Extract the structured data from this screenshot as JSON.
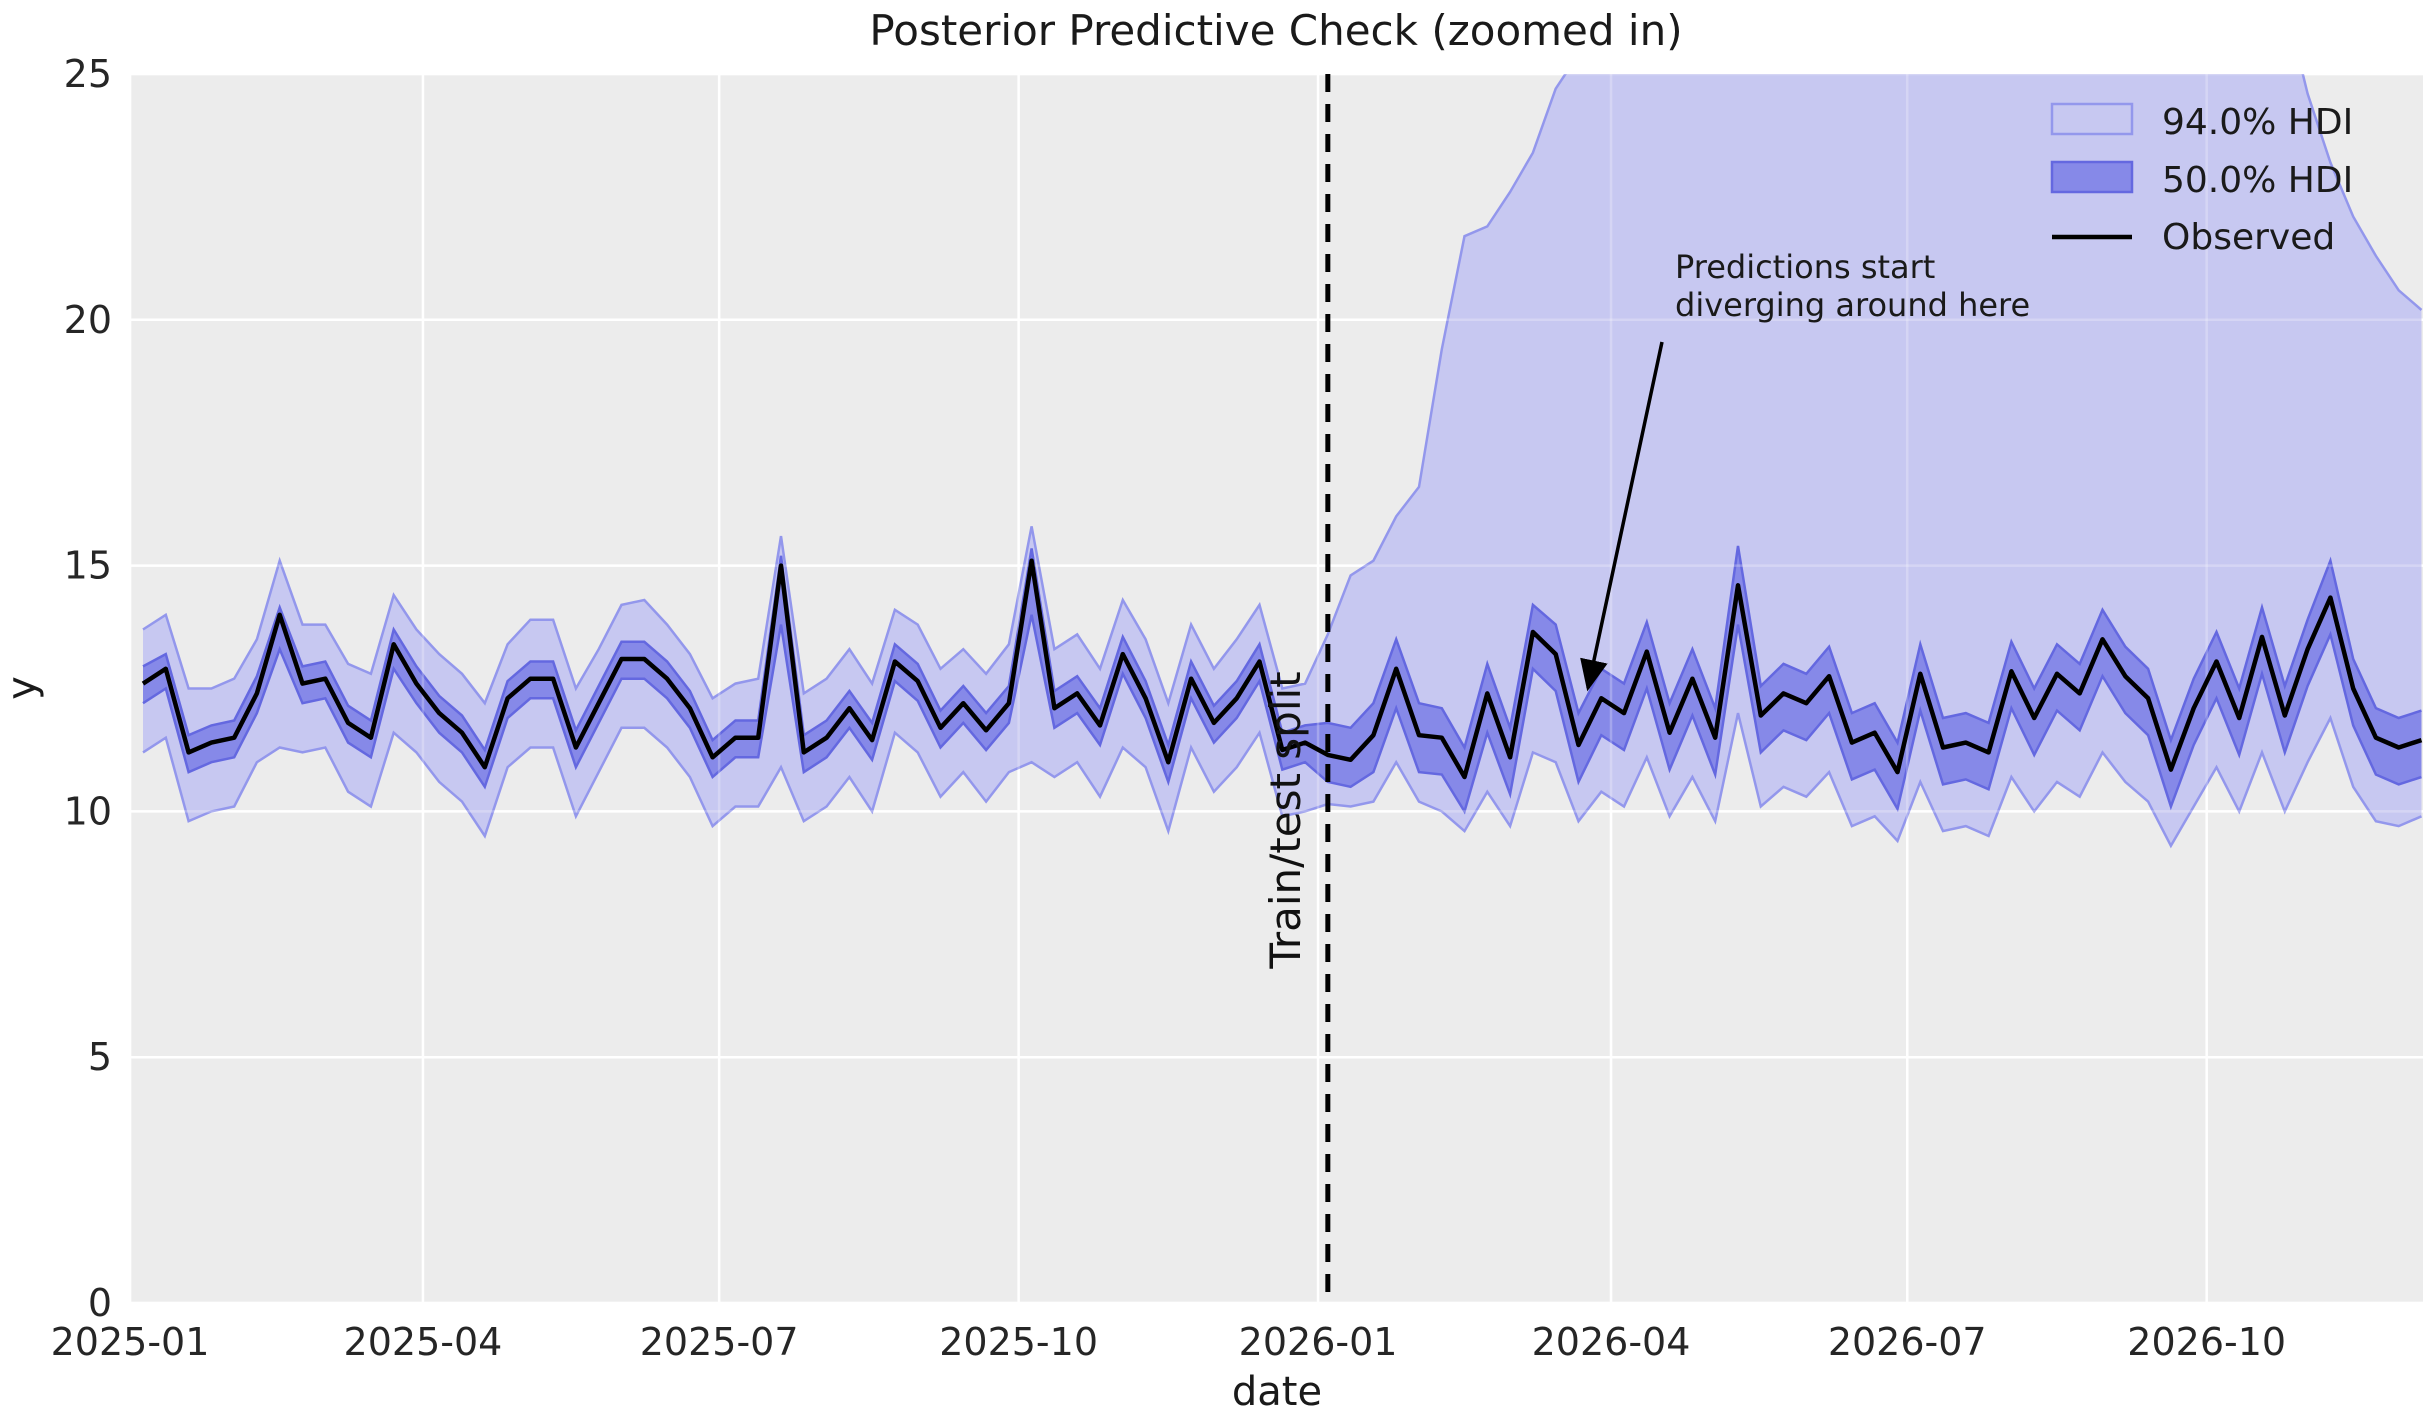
{
  "title": "Posterior Predictive Check (zoomed in)",
  "axes": {
    "xlabel": "date",
    "ylabel": "y",
    "ylim": [
      0,
      25
    ],
    "y_ticks": [
      0,
      5,
      10,
      15,
      20,
      25
    ],
    "x_ticks": [
      {
        "label": "2025-01",
        "date": "2025-01-01"
      },
      {
        "label": "2025-04",
        "date": "2025-04-01"
      },
      {
        "label": "2025-07",
        "date": "2025-07-01"
      },
      {
        "label": "2025-10",
        "date": "2025-10-01"
      },
      {
        "label": "2026-01",
        "date": "2026-01-01"
      },
      {
        "label": "2026-04",
        "date": "2026-04-01"
      },
      {
        "label": "2026-07",
        "date": "2026-07-01"
      },
      {
        "label": "2026-10",
        "date": "2026-10-01"
      }
    ]
  },
  "legend": {
    "position": "upper right",
    "items": [
      {
        "label": "94.0% HDI",
        "swatch": "band-light"
      },
      {
        "label": "50.0% HDI",
        "swatch": "band-dark"
      },
      {
        "label": "Observed",
        "swatch": "line"
      }
    ]
  },
  "annotations": {
    "split_label": "Train/test split",
    "split_date": "2026-01-04",
    "note_line1": "Predictions start",
    "note_line2": "diverging around here"
  },
  "colors": {
    "figure_bg": "#ffffff",
    "plot_bg": "#ececec",
    "grid": "#ffffff",
    "hdi94_fill": "#c7c8f1",
    "hdi94_edge": "#9397ec",
    "hdi50_fill": "#8689e8",
    "hdi50_edge": "#6468e0",
    "observed": "#000000",
    "split_line": "#000000",
    "text": "#1a1a1a",
    "tick_text": "#262626"
  },
  "chart_data": {
    "type": "line",
    "title": "Posterior Predictive Check (zoomed in)",
    "xlabel": "date",
    "ylabel": "y",
    "ylim": [
      0,
      25
    ],
    "grid": true,
    "legend_position": "upper right",
    "x_start_date": "2025-01-05",
    "x_freq_days": 7,
    "n_points": 101,
    "train_test_split_date": "2026-01-04",
    "series": [
      {
        "name": "Observed",
        "kind": "line",
        "color": "#000000",
        "values": [
          12.6,
          12.9,
          11.2,
          11.4,
          11.5,
          12.4,
          14.0,
          12.6,
          12.7,
          11.8,
          11.5,
          13.4,
          12.6,
          12.0,
          11.6,
          10.9,
          12.3,
          12.7,
          12.7,
          11.3,
          12.2,
          13.1,
          13.1,
          12.7,
          12.1,
          11.1,
          11.5,
          11.5,
          15.0,
          11.2,
          11.5,
          12.1,
          11.45,
          13.05,
          12.65,
          11.7,
          12.2,
          11.65,
          12.2,
          15.1,
          12.1,
          12.4,
          11.75,
          13.2,
          12.3,
          11.0,
          12.7,
          11.8,
          12.3,
          13.05,
          11.25,
          11.4,
          11.15,
          11.05,
          11.55,
          12.9,
          11.55,
          11.5,
          10.7,
          12.4,
          11.1,
          13.65,
          13.2,
          11.35,
          12.3,
          12.0,
          13.25,
          11.6,
          12.7,
          11.5,
          14.6,
          11.95,
          12.4,
          12.2,
          12.75,
          11.4,
          11.6,
          10.8,
          12.8,
          11.3,
          11.4,
          11.2,
          12.85,
          11.9,
          12.8,
          12.4,
          13.5,
          12.75,
          12.3,
          10.85,
          12.1,
          13.05,
          11.9,
          13.55,
          11.95,
          13.3,
          14.35,
          12.5,
          11.5,
          11.3,
          11.45
        ]
      },
      {
        "name": "94.0% HDI",
        "kind": "band",
        "fill": "#c7c8f1",
        "edge": "#9397ec",
        "upper": [
          13.7,
          14.0,
          12.5,
          12.5,
          12.7,
          13.5,
          15.1,
          13.8,
          13.8,
          13.0,
          12.8,
          14.4,
          13.7,
          13.2,
          12.8,
          12.2,
          13.4,
          13.9,
          13.9,
          12.5,
          13.3,
          14.2,
          14.3,
          13.8,
          13.2,
          12.3,
          12.6,
          12.7,
          15.6,
          12.4,
          12.7,
          13.3,
          12.6,
          14.1,
          13.8,
          12.9,
          13.3,
          12.8,
          13.4,
          15.8,
          13.3,
          13.6,
          12.9,
          14.3,
          13.5,
          12.2,
          13.8,
          12.9,
          13.5,
          14.2,
          12.5,
          12.6,
          13.6,
          14.8,
          15.1,
          16.0,
          16.6,
          19.4,
          21.7,
          21.9,
          22.6,
          23.4,
          24.7,
          25.4,
          26.5,
          26.0,
          27.5,
          26.8,
          28.0,
          27.0,
          29.0,
          27.5,
          28.2,
          27.8,
          28.5,
          26.8,
          27.0,
          26.2,
          28.0,
          26.5,
          26.8,
          26.3,
          28.2,
          27.0,
          28.0,
          27.5,
          28.8,
          28.0,
          27.6,
          26.0,
          27.2,
          28.3,
          27.0,
          28.6,
          26.5,
          24.6,
          23.2,
          22.1,
          21.3,
          20.6,
          20.2
        ],
        "lower": [
          11.2,
          11.5,
          9.8,
          10.0,
          10.1,
          11.0,
          11.3,
          11.2,
          11.3,
          10.4,
          10.1,
          11.6,
          11.2,
          10.6,
          10.2,
          9.5,
          10.9,
          11.3,
          11.3,
          9.9,
          10.8,
          11.7,
          11.7,
          11.3,
          10.7,
          9.7,
          10.1,
          10.1,
          10.9,
          9.8,
          10.1,
          10.7,
          10.0,
          11.6,
          11.2,
          10.3,
          10.8,
          10.2,
          10.8,
          11.0,
          10.7,
          11.0,
          10.3,
          11.3,
          10.9,
          9.6,
          11.3,
          10.4,
          10.9,
          11.6,
          9.9,
          10.0,
          10.15,
          10.1,
          10.2,
          11.0,
          10.2,
          10.0,
          9.6,
          10.4,
          9.7,
          11.2,
          11.0,
          9.8,
          10.4,
          10.1,
          11.1,
          9.9,
          10.7,
          9.8,
          12.0,
          10.1,
          10.5,
          10.3,
          10.8,
          9.7,
          9.9,
          9.4,
          10.6,
          9.6,
          9.7,
          9.5,
          10.7,
          10.0,
          10.6,
          10.3,
          11.2,
          10.6,
          10.2,
          9.3,
          10.1,
          10.9,
          10.0,
          11.2,
          10.0,
          11.0,
          11.9,
          10.5,
          9.8,
          9.7,
          9.9
        ]
      },
      {
        "name": "50.0% HDI",
        "kind": "band",
        "fill": "#8689e8",
        "edge": "#6468e0",
        "upper": [
          12.95,
          13.2,
          11.55,
          11.75,
          11.85,
          12.75,
          14.15,
          12.95,
          13.05,
          12.15,
          11.85,
          13.7,
          12.95,
          12.35,
          11.95,
          11.25,
          12.65,
          13.05,
          13.05,
          11.65,
          12.55,
          13.45,
          13.45,
          13.05,
          12.45,
          11.45,
          11.85,
          11.85,
          15.2,
          11.55,
          11.85,
          12.45,
          11.8,
          13.4,
          13.0,
          12.05,
          12.55,
          12.0,
          12.55,
          15.35,
          12.45,
          12.75,
          12.1,
          13.55,
          12.65,
          11.35,
          13.05,
          12.15,
          12.65,
          13.4,
          11.6,
          11.75,
          11.8,
          11.7,
          12.2,
          13.5,
          12.2,
          12.1,
          11.3,
          13.0,
          11.7,
          14.2,
          13.8,
          12.0,
          12.9,
          12.6,
          13.85,
          12.2,
          13.3,
          12.1,
          15.4,
          12.55,
          13.0,
          12.8,
          13.35,
          12.0,
          12.2,
          11.4,
          13.4,
          11.9,
          12.0,
          11.8,
          13.45,
          12.5,
          13.4,
          13.0,
          14.1,
          13.35,
          12.9,
          11.45,
          12.7,
          13.65,
          12.5,
          14.15,
          12.55,
          13.9,
          15.1,
          13.1,
          12.1,
          11.9,
          12.05
        ],
        "lower": [
          12.2,
          12.5,
          10.8,
          11.0,
          11.1,
          12.0,
          13.3,
          12.2,
          12.3,
          11.4,
          11.1,
          12.9,
          12.2,
          11.6,
          11.2,
          10.5,
          11.9,
          12.3,
          12.3,
          10.9,
          11.8,
          12.7,
          12.7,
          12.3,
          11.7,
          10.7,
          11.1,
          11.1,
          13.8,
          10.8,
          11.1,
          11.7,
          11.05,
          12.65,
          12.25,
          11.3,
          11.8,
          11.25,
          11.8,
          14.0,
          11.7,
          12.0,
          11.35,
          12.8,
          11.9,
          10.6,
          12.3,
          11.4,
          11.9,
          12.65,
          10.85,
          11.0,
          10.6,
          10.5,
          10.8,
          12.1,
          10.8,
          10.75,
          10.0,
          11.6,
          10.35,
          12.9,
          12.45,
          10.6,
          11.55,
          11.25,
          12.5,
          10.85,
          11.95,
          10.75,
          13.8,
          11.2,
          11.65,
          11.45,
          12.0,
          10.65,
          10.85,
          10.05,
          12.05,
          10.55,
          10.65,
          10.45,
          12.1,
          11.15,
          12.05,
          11.65,
          12.75,
          12.0,
          11.55,
          10.1,
          11.35,
          12.3,
          11.15,
          12.8,
          11.2,
          12.55,
          13.6,
          11.75,
          10.75,
          10.55,
          10.7
        ]
      }
    ]
  }
}
